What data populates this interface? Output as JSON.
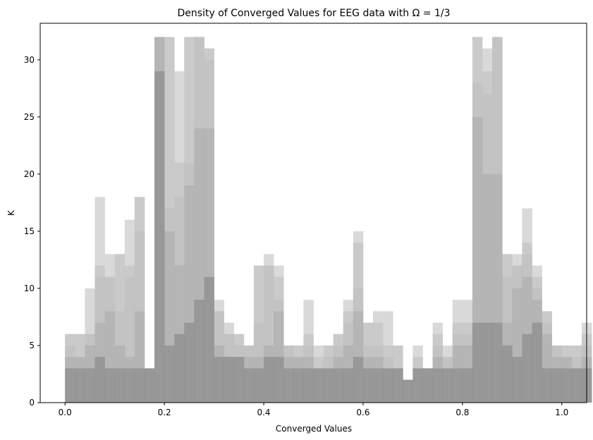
{
  "chart_data": {
    "type": "bar",
    "title": "Density of Converged Values for EEG data with Ω = 1/3",
    "xlabel": "Converged Values",
    "ylabel": "K",
    "xlim": [
      -0.05,
      1.05
    ],
    "ylim": [
      0,
      33.2
    ],
    "xticks": [
      0.0,
      0.2,
      0.4,
      0.6,
      0.8,
      1.0
    ],
    "xtick_labels": [
      "0.0",
      "0.2",
      "0.4",
      "0.6",
      "0.8",
      "1.0"
    ],
    "yticks": [
      0,
      5,
      10,
      15,
      20,
      25,
      30
    ],
    "ytick_labels": [
      "0",
      "5",
      "10",
      "15",
      "20",
      "25",
      "30"
    ],
    "grid": false,
    "bin_start": 0.0,
    "bin_width": 0.02,
    "colors": {
      "layer_light": "#d9d9d9",
      "layer_mid": "#bebebe",
      "layer_dark": "#a9a9a9",
      "layer_base": "#808080"
    },
    "series": [
      {
        "values": [
          6,
          6,
          10,
          18,
          13,
          13,
          16,
          18,
          3,
          32,
          32,
          29,
          32,
          32,
          31,
          9,
          7,
          6,
          5,
          12,
          13,
          12,
          5,
          5,
          9,
          5,
          5,
          6,
          9,
          15,
          7,
          8,
          8,
          5,
          2,
          5,
          3,
          7,
          5,
          9,
          9,
          32,
          31,
          32,
          13,
          13,
          17,
          12,
          8,
          5,
          5,
          5,
          7
        ]
      },
      {
        "values": [
          6,
          6,
          6,
          12,
          11,
          13,
          12,
          18,
          3,
          32,
          32,
          21,
          32,
          32,
          31,
          8,
          6,
          6,
          5,
          12,
          12,
          11,
          5,
          5,
          6,
          4,
          5,
          6,
          8,
          14,
          7,
          7,
          5,
          5,
          2,
          4,
          3,
          6,
          4,
          7,
          7,
          32,
          29,
          32,
          13,
          12,
          14,
          11,
          8,
          5,
          5,
          5,
          6
        ]
      },
      {
        "values": [
          5,
          4,
          6,
          11,
          11,
          8,
          11,
          15,
          3,
          32,
          17,
          18,
          21,
          32,
          30,
          8,
          6,
          5,
          5,
          7,
          12,
          9,
          5,
          4,
          5,
          3,
          4,
          5,
          7,
          10,
          5,
          5,
          4,
          3,
          2,
          3,
          3,
          5,
          4,
          6,
          6,
          28,
          27,
          32,
          11,
          12,
          13,
          10,
          7,
          5,
          4,
          4,
          5
        ]
      },
      {
        "values": [
          4,
          4,
          5,
          7,
          8,
          5,
          4,
          8,
          3,
          32,
          15,
          12,
          19,
          24,
          24,
          5,
          4,
          4,
          4,
          4,
          5,
          8,
          4,
          4,
          4,
          3,
          3,
          4,
          5,
          8,
          4,
          4,
          3,
          3,
          2,
          3,
          3,
          4,
          3,
          5,
          5,
          25,
          20,
          20,
          7,
          10,
          11,
          9,
          6,
          4,
          4,
          3,
          4
        ]
      },
      {
        "values": [
          3,
          3,
          3,
          4,
          3,
          3,
          3,
          3,
          3,
          29,
          5,
          6,
          7,
          9,
          11,
          4,
          4,
          4,
          3,
          3,
          4,
          4,
          3,
          3,
          3,
          3,
          3,
          3,
          3,
          4,
          3,
          3,
          3,
          3,
          2,
          3,
          3,
          3,
          3,
          3,
          3,
          7,
          7,
          7,
          5,
          4,
          6,
          7,
          3,
          3,
          3,
          3,
          3
        ]
      }
    ]
  }
}
